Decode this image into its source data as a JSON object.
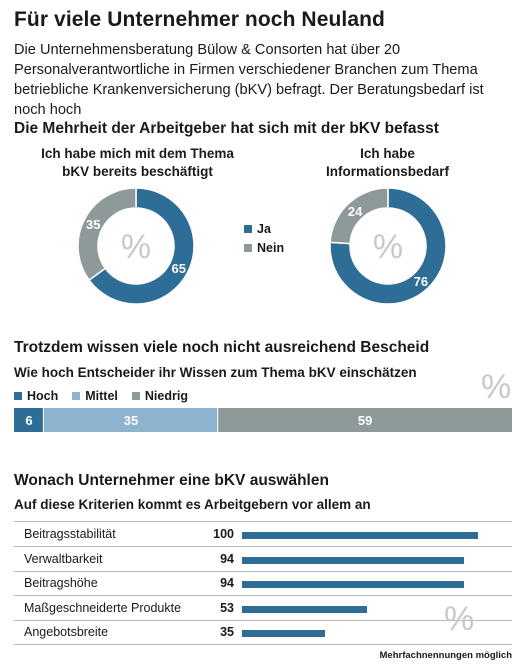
{
  "title": "Für viele Unternehmer noch Neuland",
  "intro": "Die Unternehmensberatung Bülow & Consorten hat über 20 Personalverantwortliche in Firmen verschiedener Branchen zum Thema betriebliche Krankenversicherung (bKV) befragt. Der Beratungsbedarf ist noch hoch",
  "section1": {
    "heading": "Die Mehrheit der Arbeitgeber hat sich mit der bKV befasst",
    "unit": "%",
    "legend": [
      {
        "label": "Ja",
        "color": "#2e6d96"
      },
      {
        "label": "Nein",
        "color": "#8e9a9a"
      }
    ]
  },
  "section2": {
    "heading": "Trotzdem wissen viele noch nicht ausreichend Bescheid",
    "subheading": "Wie hoch Entscheider ihr Wissen zum Thema bKV einschätzen",
    "unit": "%",
    "legend": [
      {
        "label": "Hoch",
        "color": "#2e6d96"
      },
      {
        "label": "Mittel",
        "color": "#8db3cf"
      },
      {
        "label": "Niedrig",
        "color": "#8e9a9a"
      }
    ]
  },
  "section3": {
    "heading": "Wonach Unternehmer eine bKV auswählen",
    "subheading": "Auf diese Kriterien kommt es Arbeitgebern vor allem an",
    "unit": "%",
    "footnote": "Mehrfachnennungen möglich"
  },
  "chart_data": [
    {
      "type": "pie",
      "title": "Ich habe mich mit dem Thema bKV bereits beschäftigt",
      "categories": [
        "Ja",
        "Nein"
      ],
      "values": [
        65,
        35
      ],
      "colors": [
        "#2e6d96",
        "#8e9a9a"
      ]
    },
    {
      "type": "pie",
      "title": "Ich habe Informationsbedarf",
      "categories": [
        "Ja",
        "Nein"
      ],
      "values": [
        76,
        24
      ],
      "colors": [
        "#2e6d96",
        "#8e9a9a"
      ]
    },
    {
      "type": "bar",
      "orientation": "stacked-horizontal",
      "categories": [
        "Hoch",
        "Mittel",
        "Niedrig"
      ],
      "values": [
        6,
        35,
        59
      ],
      "colors": [
        "#2e6d96",
        "#8db3cf",
        "#8e9a9a"
      ]
    },
    {
      "type": "bar",
      "orientation": "horizontal",
      "categories": [
        "Beitragsstabilität",
        "Verwaltbarkeit",
        "Beitragshöhe",
        "Maßgeschneiderte Produkte",
        "Angebotsbreite"
      ],
      "values": [
        100,
        94,
        94,
        53,
        35
      ],
      "xlim": [
        0,
        100
      ],
      "color": "#2e6d96"
    }
  ]
}
